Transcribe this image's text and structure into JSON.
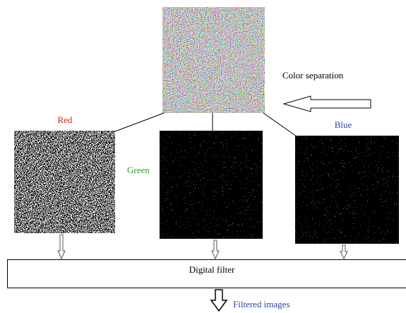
{
  "labels": {
    "color_separation": "Color separation",
    "red": "Red",
    "green": "Green",
    "blue": "Blue",
    "digital_filter": "Digital filter",
    "filtered_images": "Filtered images"
  }
}
